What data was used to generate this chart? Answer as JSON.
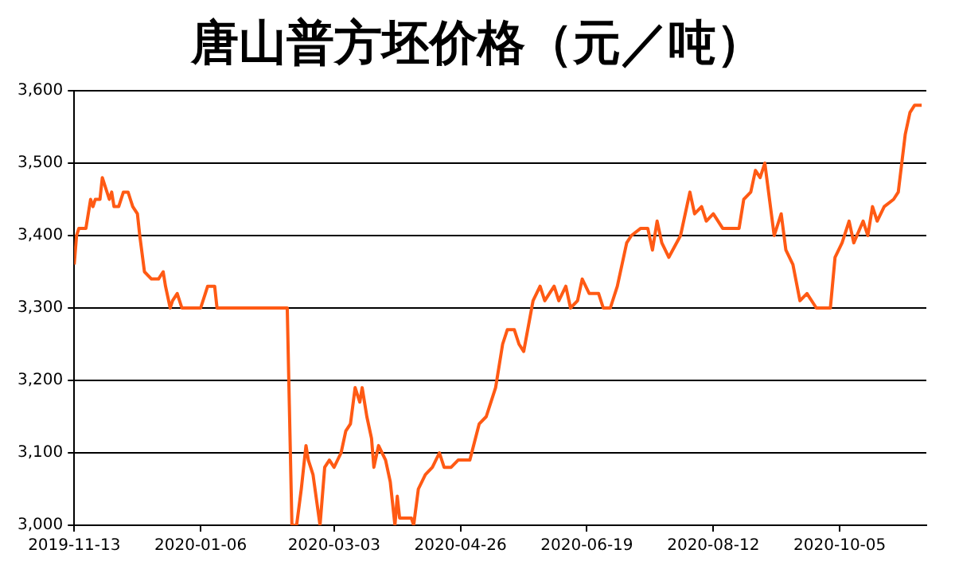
{
  "chart_data": {
    "type": "line",
    "title": "唐山普方坯价格（元／吨）",
    "x": [
      "2019-11-13",
      "2019-11-14",
      "2019-11-15",
      "2019-11-18",
      "2019-11-20",
      "2019-11-21",
      "2019-11-22",
      "2019-11-24",
      "2019-11-25",
      "2019-11-28",
      "2019-11-29",
      "2019-11-30",
      "2019-12-02",
      "2019-12-04",
      "2019-12-06",
      "2019-12-07",
      "2019-12-08",
      "2019-12-10",
      "2019-12-11",
      "2019-12-13",
      "2019-12-16",
      "2019-12-19",
      "2019-12-21",
      "2019-12-22",
      "2019-12-24",
      "2019-12-25",
      "2019-12-27",
      "2019-12-29",
      "2020-01-06",
      "2020-01-08",
      "2020-01-09",
      "2020-01-12",
      "2020-01-13",
      "2020-02-12",
      "2020-02-14",
      "2020-02-16",
      "2020-02-18",
      "2020-02-20",
      "2020-02-21",
      "2020-02-22",
      "2020-02-23",
      "2020-02-26",
      "2020-02-28",
      "2020-03-01",
      "2020-03-03",
      "2020-03-06",
      "2020-03-08",
      "2020-03-10",
      "2020-03-12",
      "2020-03-14",
      "2020-03-15",
      "2020-03-17",
      "2020-03-19",
      "2020-03-20",
      "2020-03-22",
      "2020-03-25",
      "2020-03-27",
      "2020-03-29",
      "2020-03-30",
      "2020-03-31",
      "2020-04-05",
      "2020-04-06",
      "2020-04-08",
      "2020-04-11",
      "2020-04-14",
      "2020-04-17",
      "2020-04-19",
      "2020-04-22",
      "2020-04-25",
      "2020-04-30",
      "2020-05-04",
      "2020-05-07",
      "2020-05-11",
      "2020-05-14",
      "2020-05-16",
      "2020-05-19",
      "2020-05-21",
      "2020-05-23",
      "2020-05-27",
      "2020-05-30",
      "2020-06-01",
      "2020-06-05",
      "2020-06-07",
      "2020-06-10",
      "2020-06-12",
      "2020-06-15",
      "2020-06-17",
      "2020-06-20",
      "2020-06-24",
      "2020-06-26",
      "2020-06-29",
      "2020-07-02",
      "2020-07-06",
      "2020-07-08",
      "2020-07-12",
      "2020-07-15",
      "2020-07-17",
      "2020-07-19",
      "2020-07-21",
      "2020-07-24",
      "2020-07-29",
      "2020-08-02",
      "2020-08-04",
      "2020-08-07",
      "2020-08-09",
      "2020-08-12",
      "2020-08-16",
      "2020-08-23",
      "2020-08-25",
      "2020-08-28",
      "2020-08-30",
      "2020-09-01",
      "2020-09-03",
      "2020-09-07",
      "2020-09-10",
      "2020-09-12",
      "2020-09-15",
      "2020-09-18",
      "2020-09-21",
      "2020-09-25",
      "2020-10-01",
      "2020-10-03",
      "2020-10-06",
      "2020-10-09",
      "2020-10-11",
      "2020-10-15",
      "2020-10-17",
      "2020-10-19",
      "2020-10-21",
      "2020-10-24",
      "2020-10-28",
      "2020-10-30",
      "2020-11-02",
      "2020-11-04",
      "2020-11-06",
      "2020-11-09"
    ],
    "series": [
      {
        "color": "#ff5a14",
        "values": [
          3360,
          3400,
          3410,
          3410,
          3450,
          3440,
          3450,
          3450,
          3480,
          3450,
          3460,
          3440,
          3440,
          3460,
          3460,
          3450,
          3440,
          3430,
          3400,
          3350,
          3340,
          3340,
          3350,
          3330,
          3300,
          3310,
          3320,
          3300,
          3300,
          3320,
          3330,
          3330,
          3300,
          3300,
          3000,
          3000,
          3050,
          3110,
          3090,
          3080,
          3070,
          3000,
          3080,
          3090,
          3080,
          3100,
          3130,
          3140,
          3190,
          3170,
          3190,
          3150,
          3120,
          3080,
          3110,
          3090,
          3060,
          3000,
          3040,
          3010,
          3010,
          3000,
          3050,
          3070,
          3080,
          3100,
          3080,
          3080,
          3090,
          3090,
          3140,
          3150,
          3190,
          3250,
          3270,
          3270,
          3250,
          3240,
          3310,
          3330,
          3310,
          3330,
          3310,
          3330,
          3300,
          3310,
          3340,
          3320,
          3320,
          3300,
          3300,
          3330,
          3390,
          3400,
          3410,
          3410,
          3380,
          3420,
          3390,
          3370,
          3400,
          3460,
          3430,
          3440,
          3420,
          3430,
          3410,
          3410,
          3450,
          3460,
          3490,
          3480,
          3500,
          3400,
          3430,
          3380,
          3360,
          3310,
          3320,
          3300,
          3300,
          3370,
          3390,
          3420,
          3390,
          3420,
          3400,
          3440,
          3420,
          3440,
          3450,
          3460,
          3540,
          3570,
          3580,
          3580
        ]
      }
    ],
    "xlim": [
      "2019-11-13",
      "2020-11-11"
    ],
    "xticks": [
      "2019-11-13",
      "2020-01-06",
      "2020-03-03",
      "2020-04-26",
      "2020-06-19",
      "2020-08-12",
      "2020-10-05"
    ],
    "ylim": [
      3000,
      3600
    ],
    "yticks": [
      {
        "value": 3000,
        "label": "3,000"
      },
      {
        "value": 3100,
        "label": "3,100"
      },
      {
        "value": 3200,
        "label": "3,200"
      },
      {
        "value": 3300,
        "label": "3,300"
      },
      {
        "value": 3400,
        "label": "3,400"
      },
      {
        "value": 3500,
        "label": "3,500"
      },
      {
        "value": 3600,
        "label": "3,600"
      }
    ],
    "grid": "y",
    "marker": "none",
    "line_style": "solid",
    "legend": false
  }
}
